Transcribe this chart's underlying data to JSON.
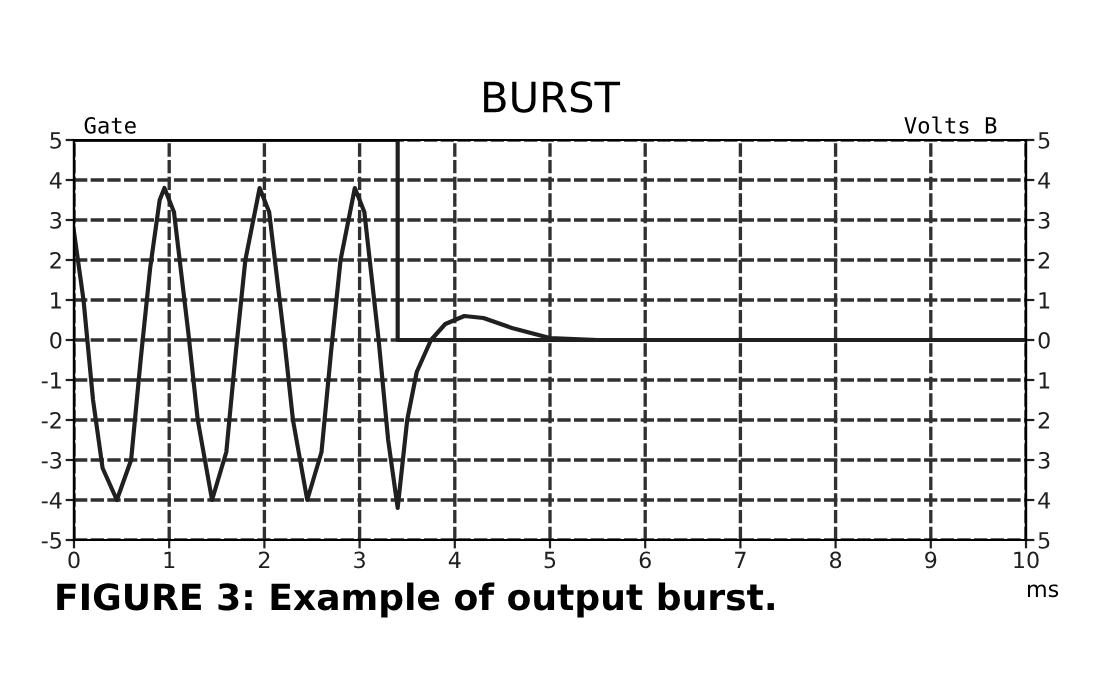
{
  "chart_data": {
    "type": "line",
    "title": "BURST",
    "xlabel": "ms",
    "ylabel": "Gate",
    "y2label": "Volts B",
    "annotations": [
      "FIGURE 3: Example of output burst."
    ],
    "series": [
      {
        "color": "#202020",
        "x": [
          0,
          3.4,
          3.4,
          10
        ],
        "values": [
          5,
          5,
          0,
          0
        ]
      },
      {
        "color": "#202020",
        "x": [
          0,
          0.1,
          0.2,
          0.3,
          0.45,
          0.6,
          0.7,
          0.8,
          0.9,
          0.95,
          1.05,
          1.2,
          1.3,
          1.45,
          1.6,
          1.7,
          1.8,
          1.95,
          2.05,
          2.2,
          2.3,
          2.45,
          2.6,
          2.7,
          2.8,
          2.95,
          3.05,
          3.2,
          3.3,
          3.4,
          3.5,
          3.6,
          3.75,
          3.9,
          4.1,
          4.3,
          4.6,
          5.0,
          5.5,
          10
        ],
        "values": [
          2.7,
          1.0,
          -1.5,
          -3.2,
          -4.0,
          -3.0,
          -0.5,
          1.8,
          3.5,
          3.8,
          3.2,
          0.2,
          -2.0,
          -4.0,
          -2.8,
          -0.3,
          2.0,
          3.8,
          3.2,
          0.2,
          -2.0,
          -4.0,
          -2.8,
          -0.3,
          2.0,
          3.8,
          3.2,
          0.0,
          -2.5,
          -4.2,
          -2.0,
          -0.8,
          0.0,
          0.4,
          0.6,
          0.55,
          0.3,
          0.05,
          0,
          0
        ]
      }
    ],
    "xlim": [
      0,
      10
    ],
    "xticks": [
      0,
      1,
      2,
      3,
      4,
      5,
      6,
      7,
      8,
      9,
      10
    ],
    "ylim": [
      -5,
      5
    ],
    "yticks": [
      -5,
      -4,
      -3,
      -2,
      -1,
      0,
      1,
      2,
      3,
      4,
      5
    ],
    "y2lim": [
      -5,
      5
    ],
    "y2ticks": [
      {
        "value": -5,
        "label": "5"
      },
      {
        "value": -4,
        "label": "4"
      },
      {
        "value": -3,
        "label": "3"
      },
      {
        "value": -2,
        "label": "2"
      },
      {
        "value": -1,
        "label": "1"
      },
      0,
      1,
      2,
      3,
      4,
      5
    ],
    "grid": true,
    "line_style": "solid",
    "marker": "none"
  }
}
